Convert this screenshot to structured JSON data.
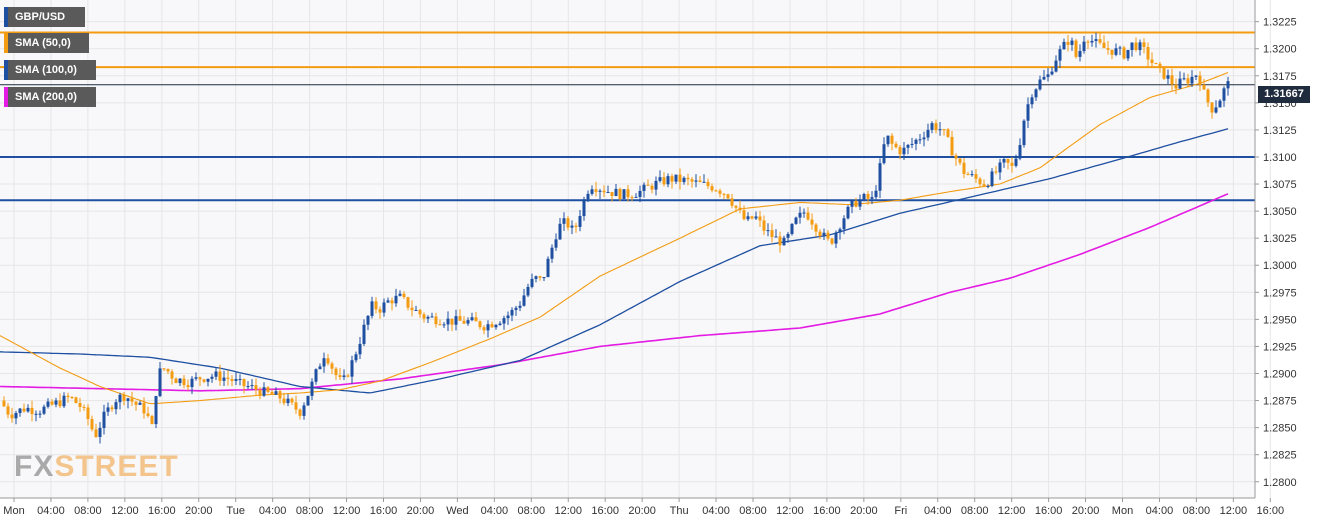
{
  "legend": [
    {
      "label": "GBP/USD",
      "color": "#1e4fa0"
    },
    {
      "label": "SMA (50,0)",
      "color": "#f39c12"
    },
    {
      "label": "SMA (100,0)",
      "color": "#1e4fa0"
    },
    {
      "label": "SMA (200,0)",
      "color": "#e31be3"
    }
  ],
  "watermark": {
    "part1": "FX",
    "part2": "STREET"
  },
  "current_price_label": "1.31667",
  "colors": {
    "bull": "#1e4fa0",
    "bear": "#f39c12",
    "sma50": "#f39c12",
    "sma100": "#1e4fa0",
    "sma200": "#e31be3",
    "resistance": "#f39c12",
    "support": "#1e4fa0",
    "grid": "#e6e6e6",
    "plot_bg": "#f8f8fb"
  },
  "chart_data": {
    "type": "candlestick",
    "symbol": "GBP/USD",
    "timeframe": "15m",
    "ylim": [
      1.2785,
      1.3245
    ],
    "yticks": [
      "1.2800",
      "1.2825",
      "1.2850",
      "1.2875",
      "1.2900",
      "1.2925",
      "1.2950",
      "1.2975",
      "1.3000",
      "1.3025",
      "1.3050",
      "1.3075",
      "1.3100",
      "1.3125",
      "1.3150",
      "1.3175",
      "1.3200",
      "1.3225"
    ],
    "xticks": [
      "Mon",
      "04:00",
      "08:00",
      "12:00",
      "16:00",
      "20:00",
      "Tue",
      "04:00",
      "08:00",
      "12:00",
      "16:00",
      "20:00",
      "Wed",
      "04:00",
      "08:00",
      "12:00",
      "16:00",
      "20:00",
      "Thu",
      "04:00",
      "08:00",
      "12:00",
      "16:00",
      "20:00",
      "Fri",
      "04:00",
      "08:00",
      "12:00",
      "16:00",
      "20:00",
      "Mon",
      "04:00",
      "08:00",
      "12:00",
      "16:00"
    ],
    "horizontal_levels": [
      {
        "value": 1.3215,
        "kind": "resistance"
      },
      {
        "value": 1.3183,
        "kind": "resistance"
      },
      {
        "value": 1.31,
        "kind": "support"
      },
      {
        "value": 1.306,
        "kind": "support"
      }
    ],
    "last_price": 1.31667,
    "price_path": [
      [
        0,
        1.2875
      ],
      [
        10,
        1.2862
      ],
      [
        25,
        1.2868
      ],
      [
        40,
        1.2866
      ],
      [
        55,
        1.2872
      ],
      [
        70,
        1.2878
      ],
      [
        80,
        1.287
      ],
      [
        88,
        1.2858
      ],
      [
        95,
        1.2842
      ],
      [
        105,
        1.2862
      ],
      [
        115,
        1.2876
      ],
      [
        125,
        1.288
      ],
      [
        135,
        1.2872
      ],
      [
        145,
        1.2866
      ],
      [
        152,
        1.285
      ],
      [
        158,
        1.29
      ],
      [
        165,
        1.2905
      ],
      [
        175,
        1.2895
      ],
      [
        190,
        1.2892
      ],
      [
        200,
        1.2896
      ],
      [
        215,
        1.2898
      ],
      [
        230,
        1.2895
      ],
      [
        240,
        1.289
      ],
      [
        255,
        1.2886
      ],
      [
        265,
        1.2882
      ],
      [
        280,
        1.2878
      ],
      [
        292,
        1.287
      ],
      [
        300,
        1.2865
      ],
      [
        310,
        1.2885
      ],
      [
        318,
        1.2905
      ],
      [
        325,
        1.292
      ],
      [
        335,
        1.29
      ],
      [
        342,
        1.289
      ],
      [
        350,
        1.2905
      ],
      [
        358,
        1.2925
      ],
      [
        365,
        1.2945
      ],
      [
        372,
        1.2962
      ],
      [
        380,
        1.296
      ],
      [
        390,
        1.2968
      ],
      [
        400,
        1.297
      ],
      [
        412,
        1.296
      ],
      [
        425,
        1.2952
      ],
      [
        440,
        1.295
      ],
      [
        455,
        1.2948
      ],
      [
        470,
        1.2948
      ],
      [
        485,
        1.2944
      ],
      [
        500,
        1.295
      ],
      [
        510,
        1.2955
      ],
      [
        520,
        1.2965
      ],
      [
        528,
        1.298
      ],
      [
        535,
        1.2988
      ],
      [
        542,
        1.2985
      ],
      [
        550,
        1.301
      ],
      [
        558,
        1.3035
      ],
      [
        566,
        1.304
      ],
      [
        574,
        1.303
      ],
      [
        582,
        1.3055
      ],
      [
        590,
        1.3075
      ],
      [
        598,
        1.3072
      ],
      [
        610,
        1.3068
      ],
      [
        625,
        1.3065
      ],
      [
        640,
        1.3068
      ],
      [
        655,
        1.3075
      ],
      [
        670,
        1.308
      ],
      [
        685,
        1.3078
      ],
      [
        700,
        1.3075
      ],
      [
        715,
        1.3072
      ],
      [
        728,
        1.3065
      ],
      [
        738,
        1.305
      ],
      [
        746,
        1.304
      ],
      [
        755,
        1.3045
      ],
      [
        765,
        1.3032
      ],
      [
        775,
        1.3025
      ],
      [
        785,
        1.302
      ],
      [
        795,
        1.304
      ],
      [
        805,
        1.305
      ],
      [
        813,
        1.304
      ],
      [
        822,
        1.3028
      ],
      [
        830,
        1.302
      ],
      [
        838,
        1.3035
      ],
      [
        846,
        1.3048
      ],
      [
        855,
        1.3058
      ],
      [
        865,
        1.3062
      ],
      [
        873,
        1.306
      ],
      [
        880,
        1.309
      ],
      [
        886,
        1.312
      ],
      [
        893,
        1.311
      ],
      [
        902,
        1.3105
      ],
      [
        912,
        1.3112
      ],
      [
        922,
        1.312
      ],
      [
        932,
        1.313
      ],
      [
        942,
        1.3125
      ],
      [
        950,
        1.311
      ],
      [
        958,
        1.3095
      ],
      [
        965,
        1.3085
      ],
      [
        975,
        1.308
      ],
      [
        985,
        1.3075
      ],
      [
        995,
        1.3085
      ],
      [
        1005,
        1.3095
      ],
      [
        1012,
        1.309
      ],
      [
        1018,
        1.3105
      ],
      [
        1025,
        1.314
      ],
      [
        1032,
        1.316
      ],
      [
        1040,
        1.317
      ],
      [
        1048,
        1.3175
      ],
      [
        1055,
        1.319
      ],
      [
        1062,
        1.32
      ],
      [
        1070,
        1.321
      ],
      [
        1077,
        1.319
      ],
      [
        1085,
        1.3213
      ],
      [
        1095,
        1.3205
      ],
      [
        1105,
        1.32
      ],
      [
        1115,
        1.3198
      ],
      [
        1125,
        1.3195
      ],
      [
        1133,
        1.3205
      ],
      [
        1142,
        1.32
      ],
      [
        1150,
        1.319
      ],
      [
        1158,
        1.318
      ],
      [
        1166,
        1.3175
      ],
      [
        1175,
        1.3165
      ],
      [
        1183,
        1.317
      ],
      [
        1190,
        1.3172
      ],
      [
        1198,
        1.3178
      ],
      [
        1205,
        1.3155
      ],
      [
        1212,
        1.3145
      ],
      [
        1218,
        1.315
      ],
      [
        1222,
        1.3158
      ],
      [
        1227,
        1.3167
      ]
    ],
    "sma50": [
      [
        0,
        1.2935
      ],
      [
        60,
        1.2905
      ],
      [
        100,
        1.2888
      ],
      [
        150,
        1.2872
      ],
      [
        200,
        1.2875
      ],
      [
        260,
        1.288
      ],
      [
        300,
        1.2882
      ],
      [
        340,
        1.2885
      ],
      [
        380,
        1.2893
      ],
      [
        430,
        1.291
      ],
      [
        490,
        1.2932
      ],
      [
        540,
        1.2952
      ],
      [
        600,
        1.299
      ],
      [
        680,
        1.3025
      ],
      [
        740,
        1.3052
      ],
      [
        800,
        1.3058
      ],
      [
        850,
        1.3056
      ],
      [
        900,
        1.306
      ],
      [
        950,
        1.3068
      ],
      [
        1000,
        1.3075
      ],
      [
        1040,
        1.309
      ],
      [
        1100,
        1.313
      ],
      [
        1150,
        1.3155
      ],
      [
        1200,
        1.3168
      ],
      [
        1228,
        1.3178
      ]
    ],
    "sma100": [
      [
        0,
        1.292
      ],
      [
        80,
        1.2918
      ],
      [
        150,
        1.2915
      ],
      [
        220,
        1.2905
      ],
      [
        300,
        1.2888
      ],
      [
        370,
        1.2882
      ],
      [
        440,
        1.2895
      ],
      [
        520,
        1.2912
      ],
      [
        600,
        1.2945
      ],
      [
        680,
        1.2985
      ],
      [
        760,
        1.3018
      ],
      [
        830,
        1.3028
      ],
      [
        900,
        1.3048
      ],
      [
        980,
        1.3065
      ],
      [
        1050,
        1.308
      ],
      [
        1120,
        1.3098
      ],
      [
        1180,
        1.3114
      ],
      [
        1228,
        1.3126
      ]
    ],
    "sma200": [
      [
        0,
        1.2888
      ],
      [
        100,
        1.2886
      ],
      [
        200,
        1.2884
      ],
      [
        300,
        1.2886
      ],
      [
        400,
        1.2895
      ],
      [
        500,
        1.2908
      ],
      [
        600,
        1.2925
      ],
      [
        700,
        1.2935
      ],
      [
        800,
        1.2942
      ],
      [
        880,
        1.2955
      ],
      [
        950,
        1.2975
      ],
      [
        1010,
        1.2988
      ],
      [
        1080,
        1.301
      ],
      [
        1150,
        1.3035
      ],
      [
        1228,
        1.3066
      ]
    ]
  }
}
